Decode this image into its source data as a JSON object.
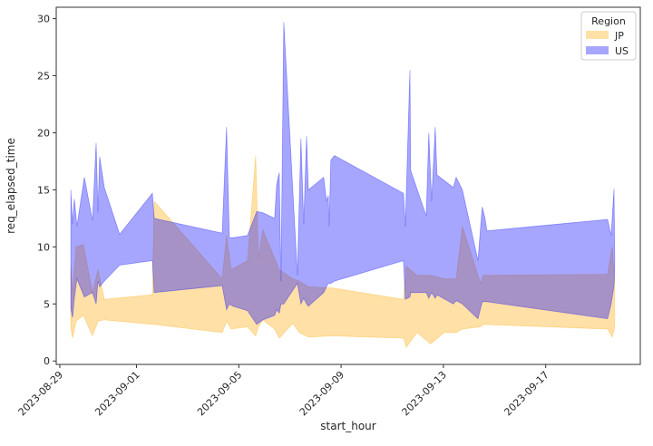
{
  "chart_data": {
    "type": "area",
    "title": "",
    "xlabel": "start_hour",
    "ylabel": "req_elapsed_time",
    "x_unit": "days since 2023-08-29 00:00",
    "xlim": [
      -0.14,
      22.7
    ],
    "ylim": [
      -0.3,
      31.0
    ],
    "grid": false,
    "x_ticks": [
      {
        "value": 0,
        "label": "2023-08-29"
      },
      {
        "value": 3,
        "label": "2023-09-01"
      },
      {
        "value": 7,
        "label": "2023-09-05"
      },
      {
        "value": 11,
        "label": "2023-09-09"
      },
      {
        "value": 15,
        "label": "2023-09-13"
      },
      {
        "value": 19,
        "label": "2023-09-17"
      }
    ],
    "y_ticks": [
      {
        "value": 0,
        "label": "0"
      },
      {
        "value": 5,
        "label": "5"
      },
      {
        "value": 10,
        "label": "10"
      },
      {
        "value": 15,
        "label": "15"
      },
      {
        "value": 20,
        "label": "20"
      },
      {
        "value": 25,
        "label": "25"
      },
      {
        "value": 30,
        "label": "30"
      }
    ],
    "legend": {
      "title": "Region",
      "placement": "top-right"
    },
    "series": [
      {
        "name": "JP",
        "color": "#ffa500",
        "points": [
          [
            0.43,
            3,
            8.4
          ],
          [
            0.5,
            2,
            6
          ],
          [
            0.64,
            3.5,
            10
          ],
          [
            0.92,
            4,
            10.2
          ],
          [
            1.28,
            2.2,
            6
          ],
          [
            1.49,
            3.5,
            8
          ],
          [
            1.74,
            3.6,
            5.4
          ],
          [
            3.62,
            3.2,
            5.8
          ],
          [
            3.69,
            3.2,
            14
          ],
          [
            6.35,
            2.5,
            7.2
          ],
          [
            6.52,
            3.5,
            11
          ],
          [
            6.7,
            2.8,
            8
          ],
          [
            7.34,
            3,
            8.8
          ],
          [
            7.66,
            2.2,
            18
          ],
          [
            7.77,
            3,
            9
          ],
          [
            7.94,
            3.6,
            11.5
          ],
          [
            8.4,
            2.8,
            9
          ],
          [
            8.58,
            2,
            8
          ],
          [
            9.11,
            3.3,
            7.2
          ],
          [
            9.36,
            2.5,
            7
          ],
          [
            9.72,
            2.1,
            6.5
          ],
          [
            10.67,
            2.2,
            6.4
          ],
          [
            13.44,
            2,
            5.4
          ],
          [
            13.55,
            1.2,
            8.3
          ],
          [
            13.97,
            2.5,
            7.5
          ],
          [
            14.5,
            1.5,
            7.5
          ],
          [
            15.04,
            2.5,
            7.2
          ],
          [
            15.5,
            2.5,
            7.2
          ],
          [
            15.74,
            2.8,
            11.8
          ],
          [
            16.45,
            3,
            6.8
          ],
          [
            16.56,
            3.2,
            7.5
          ],
          [
            21.42,
            2.8,
            7.6
          ],
          [
            21.6,
            2.1,
            10
          ],
          [
            21.7,
            3,
            7
          ]
        ]
      },
      {
        "name": "US",
        "color": "#0000ff",
        "points": [
          [
            0.43,
            4.6,
            15
          ],
          [
            0.5,
            3.8,
            12
          ],
          [
            0.57,
            5.5,
            14.2
          ],
          [
            0.67,
            7.2,
            11.8
          ],
          [
            0.96,
            5.6,
            16.1
          ],
          [
            1.28,
            6,
            12.3
          ],
          [
            1.42,
            5,
            19.1
          ],
          [
            1.49,
            7,
            13
          ],
          [
            1.56,
            6.5,
            17.9
          ],
          [
            1.74,
            7,
            15.2
          ],
          [
            2.34,
            8.4,
            11.1
          ],
          [
            3.62,
            8.8,
            14.7
          ],
          [
            3.69,
            6,
            12.5
          ],
          [
            6.35,
            6.6,
            11.2
          ],
          [
            6.52,
            4.5,
            20.5
          ],
          [
            6.63,
            5,
            10.8
          ],
          [
            6.77,
            4.8,
            10.8
          ],
          [
            7.34,
            4.4,
            11
          ],
          [
            7.7,
            3.2,
            13.1
          ],
          [
            7.94,
            3.6,
            13
          ],
          [
            8.4,
            4,
            12.5
          ],
          [
            8.48,
            4.5,
            15.5
          ],
          [
            8.58,
            4.2,
            16.5
          ],
          [
            8.65,
            5,
            7
          ],
          [
            8.76,
            5,
            29.7
          ],
          [
            9.29,
            6.8,
            7.5
          ],
          [
            9.43,
            5,
            19.5
          ],
          [
            9.54,
            5.5,
            12
          ],
          [
            9.65,
            5,
            19.7
          ],
          [
            9.72,
            4.8,
            15
          ],
          [
            10.32,
            6,
            16.1
          ],
          [
            10.43,
            6.5,
            14
          ],
          [
            10.5,
            6.8,
            14.5
          ],
          [
            10.53,
            6.8,
            11.8
          ],
          [
            10.6,
            6.8,
            17.6
          ],
          [
            10.74,
            7,
            18
          ],
          [
            13.44,
            8.8,
            14.7
          ],
          [
            13.51,
            5.4,
            11.8
          ],
          [
            13.69,
            5.6,
            25.5
          ],
          [
            13.72,
            6,
            16.7
          ],
          [
            14.33,
            6,
            12.7
          ],
          [
            14.43,
            5.5,
            20
          ],
          [
            14.54,
            6,
            14
          ],
          [
            14.68,
            5.5,
            20.5
          ],
          [
            14.75,
            5.8,
            16.3
          ],
          [
            15.39,
            5,
            15.2
          ],
          [
            15.5,
            5.3,
            16.1
          ],
          [
            15.74,
            5,
            15
          ],
          [
            16.35,
            3.7,
            8.8
          ],
          [
            16.52,
            5.2,
            13.5
          ],
          [
            16.63,
            5.2,
            12.5
          ],
          [
            16.7,
            5.2,
            11.4
          ],
          [
            21.42,
            3.7,
            12.4
          ],
          [
            21.56,
            5,
            11
          ],
          [
            21.67,
            6.6,
            15.1
          ],
          [
            21.7,
            8,
            9
          ]
        ]
      }
    ]
  }
}
